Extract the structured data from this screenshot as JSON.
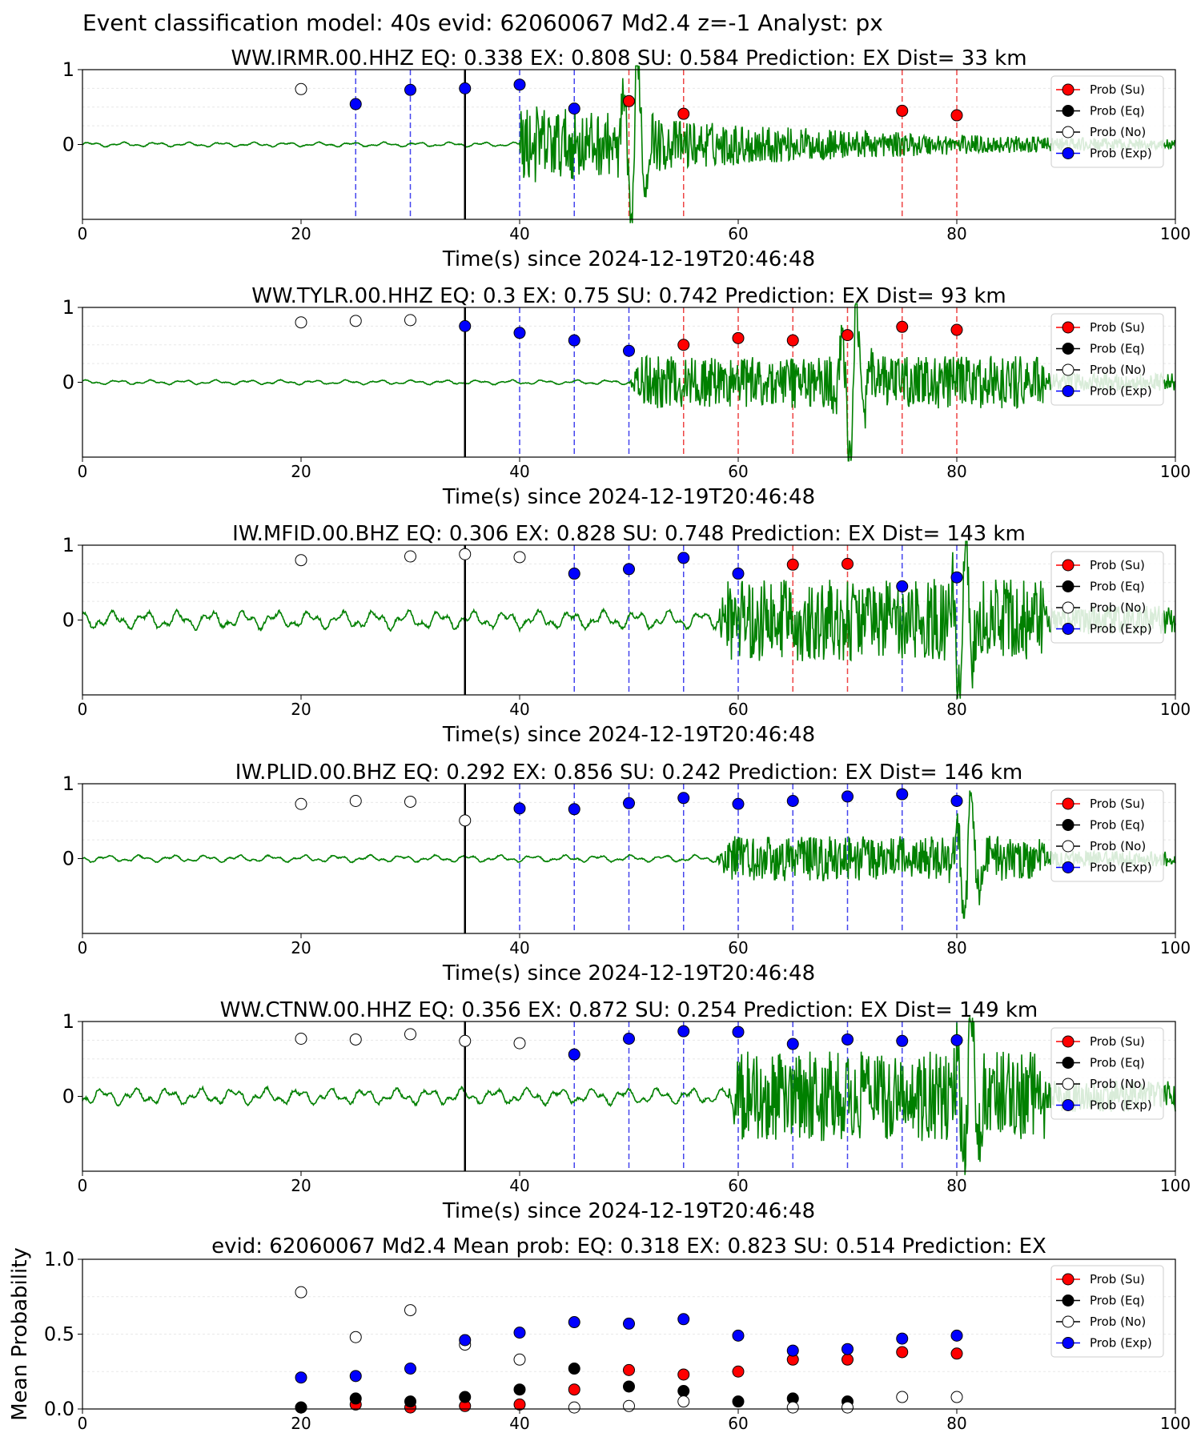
{
  "figure": {
    "suptitle": "Event classification model: 40s evid: 62060067 Md2.4 z=-1 Analyst: px",
    "colors": {
      "su": "#ff0000",
      "eq": "#000000",
      "no": "#ffffff",
      "exp": "#0000ff",
      "waveform": "#008000",
      "red_line": "#ee4444",
      "blue_line": "#4444ee",
      "black_line": "#000000"
    }
  },
  "legend": [
    "Prob (Su)",
    "Prob (Eq)",
    "Prob (No)",
    "Prob (Exp)"
  ],
  "chart_data": [
    {
      "type": "scatter",
      "station": "WW.IRMR.00.HHZ",
      "title": "WW.IRMR.00.HHZ   EQ: 0.338  EX: 0.808  SU: 0.584   Prediction: EX    Dist= 33 km",
      "xlabel": "Time(s) since 2024-12-19T20:46:48",
      "xlim": [
        0,
        100
      ],
      "ylim": [
        -1,
        1
      ],
      "xticks": [
        "0",
        "20",
        "40",
        "60",
        "80",
        "100"
      ],
      "yticks": [
        "0",
        "1"
      ],
      "marker_line": 35,
      "wave": {
        "onset": 40,
        "amp": 0.55,
        "pre_amp": 0.02,
        "decay": 0.035,
        "spikes": [
          {
            "t": 50.5,
            "a": 1.3
          }
        ]
      },
      "points": [
        {
          "t": 20,
          "cls": "no",
          "p": 0.74
        },
        {
          "t": 25,
          "cls": "exp",
          "p": 0.54
        },
        {
          "t": 30,
          "cls": "exp",
          "p": 0.73
        },
        {
          "t": 35,
          "cls": "exp",
          "p": 0.75
        },
        {
          "t": 40,
          "cls": "exp",
          "p": 0.8
        },
        {
          "t": 45,
          "cls": "exp",
          "p": 0.48
        },
        {
          "t": 50,
          "cls": "su",
          "p": 0.58
        },
        {
          "t": 55,
          "cls": "su",
          "p": 0.41
        },
        {
          "t": 75,
          "cls": "su",
          "p": 0.45
        },
        {
          "t": 80,
          "cls": "su",
          "p": 0.39
        }
      ]
    },
    {
      "type": "scatter",
      "station": "WW.TYLR.00.HHZ",
      "title": "WW.TYLR.00.HHZ   EQ: 0.3  EX: 0.75  SU: 0.742   Prediction: EX    Dist= 93 km",
      "xlabel": "Time(s) since 2024-12-19T20:46:48",
      "xlim": [
        0,
        100
      ],
      "ylim": [
        -1,
        1
      ],
      "xticks": [
        "0",
        "20",
        "40",
        "60",
        "80",
        "100"
      ],
      "yticks": [
        "0",
        "1"
      ],
      "marker_line": 35,
      "wave": {
        "onset": 50,
        "amp": 0.35,
        "pre_amp": 0.02,
        "decay": 0.0,
        "spikes": [
          {
            "t": 70.5,
            "a": 1.2
          }
        ]
      },
      "points": [
        {
          "t": 20,
          "cls": "no",
          "p": 0.8
        },
        {
          "t": 25,
          "cls": "no",
          "p": 0.82
        },
        {
          "t": 30,
          "cls": "no",
          "p": 0.83
        },
        {
          "t": 35,
          "cls": "exp",
          "p": 0.75
        },
        {
          "t": 40,
          "cls": "exp",
          "p": 0.66
        },
        {
          "t": 45,
          "cls": "exp",
          "p": 0.56
        },
        {
          "t": 50,
          "cls": "exp",
          "p": 0.42
        },
        {
          "t": 55,
          "cls": "su",
          "p": 0.5
        },
        {
          "t": 60,
          "cls": "su",
          "p": 0.59
        },
        {
          "t": 65,
          "cls": "su",
          "p": 0.56
        },
        {
          "t": 70,
          "cls": "su",
          "p": 0.63
        },
        {
          "t": 75,
          "cls": "su",
          "p": 0.74
        },
        {
          "t": 80,
          "cls": "su",
          "p": 0.7
        }
      ]
    },
    {
      "type": "scatter",
      "station": "IW.MFID.00.BHZ",
      "title": "IW.MFID.00.BHZ   EQ: 0.306  EX: 0.828  SU: 0.748   Prediction: EX    Dist= 143 km",
      "xlabel": "Time(s) since 2024-12-19T20:46:48",
      "xlim": [
        0,
        100
      ],
      "ylim": [
        -1,
        1
      ],
      "xticks": [
        "0",
        "20",
        "40",
        "60",
        "80",
        "100"
      ],
      "yticks": [
        "0",
        "1"
      ],
      "marker_line": 35,
      "wave": {
        "onset": 58,
        "amp": 0.55,
        "pre_amp": 0.08,
        "decay": 0.0,
        "spikes": [
          {
            "t": 80.5,
            "a": 1.0
          }
        ]
      },
      "points": [
        {
          "t": 20,
          "cls": "no",
          "p": 0.8
        },
        {
          "t": 30,
          "cls": "no",
          "p": 0.85
        },
        {
          "t": 35,
          "cls": "no",
          "p": 0.88
        },
        {
          "t": 40,
          "cls": "no",
          "p": 0.84
        },
        {
          "t": 45,
          "cls": "exp",
          "p": 0.62
        },
        {
          "t": 50,
          "cls": "exp",
          "p": 0.68
        },
        {
          "t": 55,
          "cls": "exp",
          "p": 0.83
        },
        {
          "t": 60,
          "cls": "exp",
          "p": 0.62
        },
        {
          "t": 65,
          "cls": "su",
          "p": 0.74
        },
        {
          "t": 70,
          "cls": "su",
          "p": 0.75
        },
        {
          "t": 75,
          "cls": "exp",
          "p": 0.45
        },
        {
          "t": 80,
          "cls": "exp",
          "p": 0.57
        }
      ]
    },
    {
      "type": "scatter",
      "station": "IW.PLID.00.BHZ",
      "title": "IW.PLID.00.BHZ   EQ: 0.292  EX: 0.856  SU: 0.242   Prediction: EX    Dist= 146 km",
      "xlabel": "Time(s) since 2024-12-19T20:46:48",
      "xlim": [
        0,
        100
      ],
      "ylim": [
        -1,
        1
      ],
      "xticks": [
        "0",
        "20",
        "40",
        "60",
        "80",
        "100"
      ],
      "yticks": [
        "0",
        "1"
      ],
      "marker_line": 35,
      "wave": {
        "onset": 58,
        "amp": 0.3,
        "pre_amp": 0.03,
        "decay": 0.0,
        "spikes": [
          {
            "t": 81,
            "a": 1.0
          }
        ]
      },
      "points": [
        {
          "t": 20,
          "cls": "no",
          "p": 0.73
        },
        {
          "t": 25,
          "cls": "no",
          "p": 0.77
        },
        {
          "t": 30,
          "cls": "no",
          "p": 0.76
        },
        {
          "t": 35,
          "cls": "no",
          "p": 0.51
        },
        {
          "t": 40,
          "cls": "exp",
          "p": 0.67
        },
        {
          "t": 45,
          "cls": "exp",
          "p": 0.66
        },
        {
          "t": 50,
          "cls": "exp",
          "p": 0.74
        },
        {
          "t": 55,
          "cls": "exp",
          "p": 0.81
        },
        {
          "t": 60,
          "cls": "exp",
          "p": 0.73
        },
        {
          "t": 65,
          "cls": "exp",
          "p": 0.77
        },
        {
          "t": 70,
          "cls": "exp",
          "p": 0.83
        },
        {
          "t": 75,
          "cls": "exp",
          "p": 0.86
        },
        {
          "t": 80,
          "cls": "exp",
          "p": 0.77
        }
      ]
    },
    {
      "type": "scatter",
      "station": "WW.CTNW.00.HHZ",
      "title": "WW.CTNW.00.HHZ   EQ: 0.356  EX: 0.872  SU: 0.254   Prediction: EX    Dist= 149 km",
      "xlabel": "Time(s) since 2024-12-19T20:46:48",
      "xlim": [
        0,
        100
      ],
      "ylim": [
        -1,
        1
      ],
      "xticks": [
        "0",
        "20",
        "40",
        "60",
        "80",
        "100"
      ],
      "yticks": [
        "0",
        "1"
      ],
      "marker_line": 35,
      "wave": {
        "onset": 59,
        "amp": 0.6,
        "pre_amp": 0.07,
        "decay": 0.0,
        "spikes": [
          {
            "t": 81,
            "a": 1.0
          }
        ]
      },
      "points": [
        {
          "t": 20,
          "cls": "no",
          "p": 0.77
        },
        {
          "t": 25,
          "cls": "no",
          "p": 0.76
        },
        {
          "t": 30,
          "cls": "no",
          "p": 0.83
        },
        {
          "t": 35,
          "cls": "no",
          "p": 0.74
        },
        {
          "t": 40,
          "cls": "no",
          "p": 0.71
        },
        {
          "t": 45,
          "cls": "exp",
          "p": 0.56
        },
        {
          "t": 50,
          "cls": "exp",
          "p": 0.77
        },
        {
          "t": 55,
          "cls": "exp",
          "p": 0.87
        },
        {
          "t": 60,
          "cls": "exp",
          "p": 0.86
        },
        {
          "t": 65,
          "cls": "exp",
          "p": 0.7
        },
        {
          "t": 70,
          "cls": "exp",
          "p": 0.76
        },
        {
          "t": 75,
          "cls": "exp",
          "p": 0.74
        },
        {
          "t": 80,
          "cls": "exp",
          "p": 0.75
        }
      ]
    },
    {
      "type": "scatter",
      "title": "evid: 62060067  Md2.4   Mean prob:   EQ: 0.318  EX: 0.823  SU: 0.514   Prediction: EX",
      "ylabel": "Mean Probability",
      "xlim": [
        0,
        100
      ],
      "ylim": [
        0,
        1
      ],
      "xticks": [
        "0",
        "20",
        "40",
        "60",
        "80",
        "100"
      ],
      "yticks": [
        "0.0",
        "0.5",
        "1.0"
      ],
      "series": [
        {
          "name": "Prob (Su)",
          "cls": "su",
          "x": [
            20,
            25,
            30,
            35,
            40,
            45,
            50,
            55,
            60,
            65,
            70,
            75,
            80
          ],
          "y": [
            0.01,
            0.03,
            0.01,
            0.02,
            0.03,
            0.13,
            0.26,
            0.23,
            0.25,
            0.33,
            0.33,
            0.38,
            0.37
          ]
        },
        {
          "name": "Prob (Eq)",
          "cls": "eq",
          "x": [
            20,
            25,
            30,
            35,
            40,
            45,
            50,
            55,
            60,
            65,
            70,
            75,
            80
          ],
          "y": [
            0.01,
            0.07,
            0.05,
            0.08,
            0.13,
            0.27,
            0.15,
            0.12,
            0.05,
            0.07,
            0.05,
            null,
            null
          ]
        },
        {
          "name": "Prob (No)",
          "cls": "no",
          "x": [
            20,
            25,
            30,
            35,
            40,
            45,
            50,
            55,
            60,
            65,
            70,
            75,
            80
          ],
          "y": [
            0.78,
            0.48,
            0.66,
            0.43,
            0.33,
            0.01,
            0.02,
            0.05,
            null,
            0.01,
            0.01,
            0.08,
            0.08
          ]
        },
        {
          "name": "Prob (Exp)",
          "cls": "exp",
          "x": [
            20,
            25,
            30,
            35,
            40,
            45,
            50,
            55,
            60,
            65,
            70,
            75,
            80
          ],
          "y": [
            0.21,
            0.22,
            0.27,
            0.46,
            0.51,
            0.58,
            0.57,
            0.6,
            0.49,
            0.39,
            0.4,
            0.47,
            0.49
          ]
        }
      ]
    }
  ]
}
